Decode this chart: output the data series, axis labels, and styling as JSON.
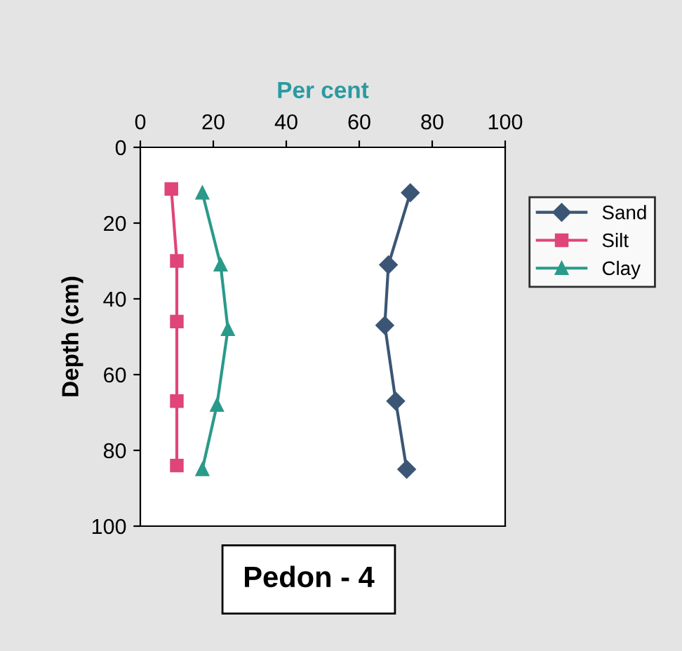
{
  "chart_data": {
    "type": "line",
    "xlabel": "Per cent",
    "ylabel": "Depth (cm)",
    "xlim": [
      0,
      100
    ],
    "xticks": [
      0,
      20,
      40,
      60,
      80,
      100
    ],
    "ylim": [
      100,
      0
    ],
    "yticks": [
      0,
      20,
      40,
      60,
      80,
      100
    ],
    "legend": "right",
    "grid": false,
    "annotations": [
      "Pedon - 4"
    ],
    "series": [
      {
        "name": "Sand",
        "color": "#3b5675",
        "marker": "diamond",
        "x": [
          74,
          68,
          67,
          70,
          73
        ],
        "values": [
          12,
          31,
          47,
          67,
          85
        ]
      },
      {
        "name": "Silt",
        "color": "#e0457a",
        "marker": "square",
        "x": [
          8.5,
          10,
          10,
          10,
          10
        ],
        "values": [
          11,
          30,
          46,
          67,
          84
        ]
      },
      {
        "name": "Clay",
        "color": "#2a9a8a",
        "marker": "triangle",
        "x": [
          17,
          22,
          24,
          21,
          17
        ],
        "values": [
          12,
          31,
          48,
          68,
          85
        ]
      }
    ]
  }
}
